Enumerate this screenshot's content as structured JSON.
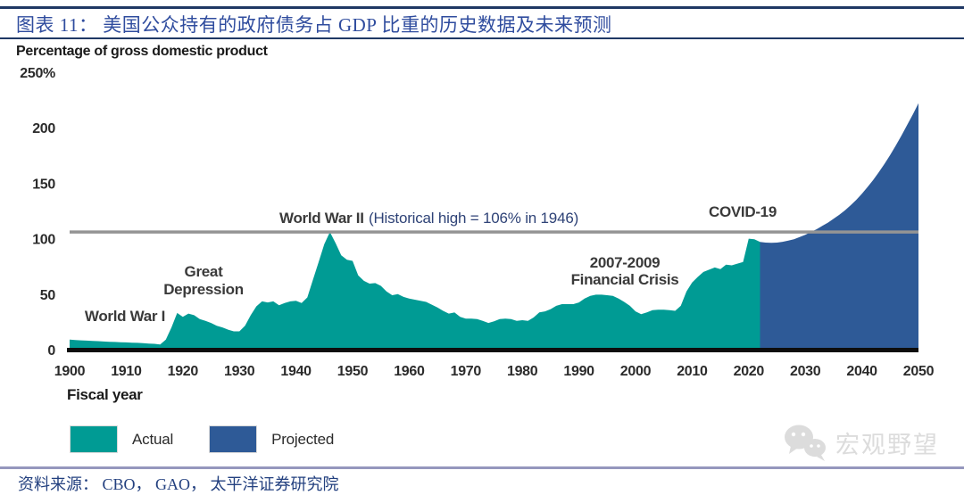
{
  "header": {
    "figure_title": "图表 11：  美国公众持有的政府债务占 GDP 比重的历史数据及未来预测",
    "subtitle": "Percentage of gross domestic product"
  },
  "chart_data": {
    "type": "area",
    "title": "Percentage of gross domestic product",
    "xlabel": "Fiscal year",
    "ylabel": "",
    "xlim": [
      1900,
      2050
    ],
    "ylim": [
      0,
      250
    ],
    "grid": false,
    "legend_position": "bottom-left",
    "x_ticks": [
      1900,
      1910,
      1920,
      1930,
      1940,
      1950,
      1960,
      1970,
      1980,
      1990,
      2000,
      2010,
      2020,
      2030,
      2040,
      2050
    ],
    "y_ticks": [
      {
        "v": 0,
        "label": "0"
      },
      {
        "v": 50,
        "label": "50"
      },
      {
        "v": 100,
        "label": "100"
      },
      {
        "v": 150,
        "label": "150"
      },
      {
        "v": 200,
        "label": "200"
      },
      {
        "v": 250,
        "label": "250%"
      }
    ],
    "reference_line": {
      "value": 106,
      "label": "Historical high = 106% in 1946"
    },
    "annotations": {
      "world_war_1": "World War I",
      "great_depression": [
        "Great",
        "Depression"
      ],
      "world_war_2": "World War II",
      "world_war_2_note": "(Historical high = 106% in 1946)",
      "financial_crisis": [
        "2007-2009",
        "Financial Crisis"
      ],
      "covid": "COVID-19"
    },
    "series": [
      {
        "name": "Actual",
        "color": "#009b94",
        "points": [
          [
            1900,
            9.0
          ],
          [
            1901,
            8.7
          ],
          [
            1902,
            8.4
          ],
          [
            1903,
            8.1
          ],
          [
            1904,
            7.9
          ],
          [
            1905,
            7.6
          ],
          [
            1906,
            7.3
          ],
          [
            1907,
            7.0
          ],
          [
            1908,
            6.9
          ],
          [
            1909,
            6.7
          ],
          [
            1910,
            6.5
          ],
          [
            1911,
            6.3
          ],
          [
            1912,
            6.1
          ],
          [
            1913,
            5.8
          ],
          [
            1914,
            5.5
          ],
          [
            1915,
            5.2
          ],
          [
            1916,
            4.7
          ],
          [
            1917,
            9.0
          ],
          [
            1918,
            20.0
          ],
          [
            1919,
            33.0
          ],
          [
            1920,
            29.5
          ],
          [
            1921,
            32.5
          ],
          [
            1922,
            31.0
          ],
          [
            1923,
            27.5
          ],
          [
            1924,
            26.0
          ],
          [
            1925,
            24.0
          ],
          [
            1926,
            21.5
          ],
          [
            1927,
            20.0
          ],
          [
            1928,
            18.0
          ],
          [
            1929,
            16.5
          ],
          [
            1930,
            16.5
          ],
          [
            1931,
            21.5
          ],
          [
            1932,
            31.0
          ],
          [
            1933,
            39.0
          ],
          [
            1934,
            43.5
          ],
          [
            1935,
            42.5
          ],
          [
            1936,
            43.5
          ],
          [
            1937,
            40.0
          ],
          [
            1938,
            42.0
          ],
          [
            1939,
            43.5
          ],
          [
            1940,
            44.0
          ],
          [
            1941,
            42.0
          ],
          [
            1942,
            47.0
          ],
          [
            1943,
            63.0
          ],
          [
            1944,
            79.0
          ],
          [
            1945,
            95.0
          ],
          [
            1946,
            106.0
          ],
          [
            1947,
            96.0
          ],
          [
            1948,
            85.0
          ],
          [
            1949,
            81.0
          ],
          [
            1950,
            80.0
          ],
          [
            1951,
            67.0
          ],
          [
            1952,
            62.0
          ],
          [
            1953,
            59.5
          ],
          [
            1954,
            60.0
          ],
          [
            1955,
            57.5
          ],
          [
            1956,
            52.5
          ],
          [
            1957,
            49.0
          ],
          [
            1958,
            50.0
          ],
          [
            1959,
            47.5
          ],
          [
            1960,
            46.0
          ],
          [
            1961,
            45.0
          ],
          [
            1962,
            44.0
          ],
          [
            1963,
            43.0
          ],
          [
            1964,
            40.5
          ],
          [
            1965,
            38.0
          ],
          [
            1966,
            35.0
          ],
          [
            1967,
            32.5
          ],
          [
            1968,
            33.5
          ],
          [
            1969,
            29.5
          ],
          [
            1970,
            28.0
          ],
          [
            1971,
            28.0
          ],
          [
            1972,
            27.5
          ],
          [
            1973,
            26.0
          ],
          [
            1974,
            24.0
          ],
          [
            1975,
            25.5
          ],
          [
            1976,
            27.5
          ],
          [
            1977,
            28.0
          ],
          [
            1978,
            27.5
          ],
          [
            1979,
            26.0
          ],
          [
            1980,
            26.5
          ],
          [
            1981,
            26.0
          ],
          [
            1982,
            29.0
          ],
          [
            1983,
            33.5
          ],
          [
            1984,
            34.5
          ],
          [
            1985,
            36.5
          ],
          [
            1986,
            39.5
          ],
          [
            1987,
            41.0
          ],
          [
            1988,
            41.0
          ],
          [
            1989,
            41.0
          ],
          [
            1990,
            42.5
          ],
          [
            1991,
            46.0
          ],
          [
            1992,
            48.5
          ],
          [
            1993,
            49.5
          ],
          [
            1994,
            49.5
          ],
          [
            1995,
            49.0
          ],
          [
            1996,
            48.5
          ],
          [
            1997,
            46.0
          ],
          [
            1998,
            43.0
          ],
          [
            1999,
            39.5
          ],
          [
            2000,
            34.5
          ],
          [
            2001,
            32.0
          ],
          [
            2002,
            33.5
          ],
          [
            2003,
            35.5
          ],
          [
            2004,
            36.0
          ],
          [
            2005,
            36.0
          ],
          [
            2006,
            35.5
          ],
          [
            2007,
            35.0
          ],
          [
            2008,
            39.5
          ],
          [
            2009,
            52.5
          ],
          [
            2010,
            60.5
          ],
          [
            2011,
            65.5
          ],
          [
            2012,
            70.0
          ],
          [
            2013,
            72.0
          ],
          [
            2014,
            74.0
          ],
          [
            2015,
            72.5
          ],
          [
            2016,
            76.5
          ],
          [
            2017,
            76.0
          ],
          [
            2018,
            77.5
          ],
          [
            2019,
            79.0
          ],
          [
            2020,
            100.0
          ],
          [
            2021,
            99.5
          ],
          [
            2022,
            97.0
          ]
        ]
      },
      {
        "name": "Projected",
        "color": "#2e5a97",
        "points": [
          [
            2022,
            97.0
          ],
          [
            2023,
            96.5
          ],
          [
            2024,
            96.3
          ],
          [
            2025,
            96.5
          ],
          [
            2026,
            97.2
          ],
          [
            2027,
            98.2
          ],
          [
            2028,
            99.5
          ],
          [
            2029,
            101.5
          ],
          [
            2030,
            103.5
          ],
          [
            2031,
            106.0
          ],
          [
            2032,
            108.5
          ],
          [
            2033,
            111.5
          ],
          [
            2034,
            114.5
          ],
          [
            2035,
            118.0
          ],
          [
            2036,
            121.5
          ],
          [
            2037,
            125.5
          ],
          [
            2038,
            130.0
          ],
          [
            2039,
            135.0
          ],
          [
            2040,
            140.5
          ],
          [
            2041,
            146.5
          ],
          [
            2042,
            153.0
          ],
          [
            2043,
            160.0
          ],
          [
            2044,
            167.5
          ],
          [
            2045,
            175.5
          ],
          [
            2046,
            184.0
          ],
          [
            2047,
            193.0
          ],
          [
            2048,
            202.5
          ],
          [
            2049,
            212.0
          ],
          [
            2050,
            222.0
          ]
        ]
      }
    ]
  },
  "legend": {
    "actual": "Actual",
    "projected": "Projected"
  },
  "watermark": {
    "icon": "wechat-icon",
    "text": "宏观野望"
  },
  "footer": {
    "source": "资料来源：  CBO，  GAO，  太平洋证券研究院"
  },
  "colors": {
    "actual": "#009b94",
    "projected": "#2e5a97",
    "reference_line": "#949494",
    "baseline": "#0d0d0d",
    "title_blue": "#2f4c9e",
    "header_rule": "#1f3864",
    "footer_rule": "#9597bd",
    "annotation_dark": "#3a3a3a",
    "annotation_navy": "#2f4377",
    "watermark_gray": "#dcdcdc"
  }
}
